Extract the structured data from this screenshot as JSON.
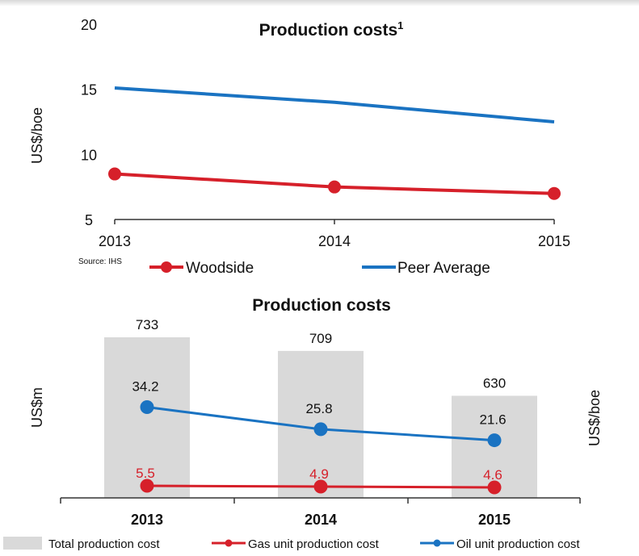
{
  "colors": {
    "woodside": "#d6202a",
    "peer": "#1a73c2",
    "bars": "#d9d9d9",
    "axis": "#333333"
  },
  "chart_data": [
    {
      "type": "line",
      "title": "Production costs",
      "title_superscript": "1",
      "ylabel": "US$/boe",
      "source": "Source: IHS",
      "x": [
        "2013",
        "2014",
        "2015"
      ],
      "ylim": [
        5,
        20
      ],
      "yticks": [
        5,
        10,
        15,
        20
      ],
      "series": [
        {
          "name": "Woodside",
          "values": [
            8.5,
            7.5,
            7.0
          ],
          "markers": true
        },
        {
          "name": "Peer Average",
          "values": [
            15.1,
            14.0,
            12.5
          ],
          "markers": false
        }
      ],
      "legend_position": "bottom"
    },
    {
      "type": "bar",
      "title": "Production costs",
      "ylabel_left": "US$m",
      "ylabel_right": "US$/boe",
      "categories": [
        "2013",
        "2014",
        "2015"
      ],
      "bar_series": {
        "name": "Total production cost",
        "values": [
          733,
          709,
          630
        ]
      },
      "line_series": [
        {
          "name": "Gas unit production cost",
          "values": [
            5.5,
            4.9,
            4.6
          ]
        },
        {
          "name": "Oil unit production cost",
          "values": [
            34.2,
            25.8,
            21.6
          ]
        }
      ],
      "legend_position": "bottom"
    }
  ]
}
